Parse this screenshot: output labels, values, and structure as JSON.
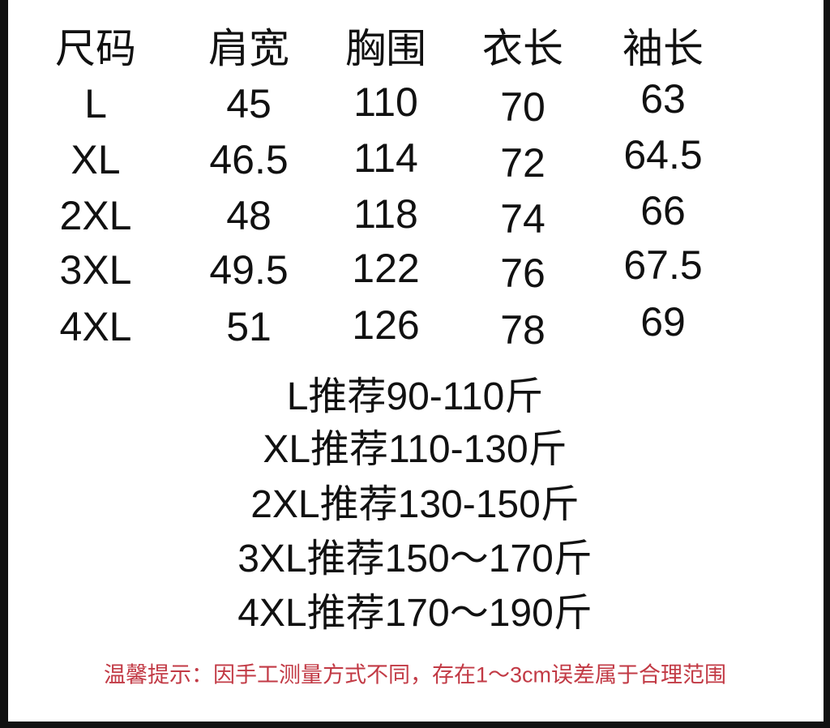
{
  "table": {
    "headers": [
      "尺码",
      "肩宽",
      "胸围",
      "衣长",
      "袖长"
    ],
    "rows": [
      [
        "L",
        "45",
        "110",
        "70",
        "63"
      ],
      [
        "XL",
        "46.5",
        "114",
        "72",
        "64.5"
      ],
      [
        "2XL",
        "48",
        "118",
        "74",
        "66"
      ],
      [
        "3XL",
        "49.5",
        "122",
        "76",
        "67.5"
      ],
      [
        "4XL",
        "51",
        "126",
        "78",
        "69"
      ]
    ]
  },
  "recommendations": [
    "L推荐90-110斤",
    "XL推荐110-130斤",
    "2XL推荐130-150斤",
    "3XL推荐150～170斤",
    "4XL推荐170～190斤"
  ],
  "note": "温馨提示：因手工测量方式不同，存在1～3cm误差属于合理范围",
  "colors": {
    "note": "#c23a45",
    "text": "#111111",
    "border": "#111111"
  }
}
